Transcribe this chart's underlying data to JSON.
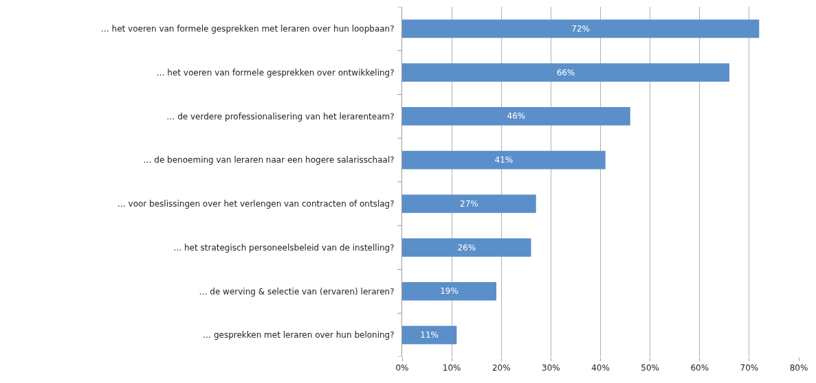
{
  "chart_data": {
    "type": "bar",
    "orientation": "horizontal",
    "categories": [
      "… het voeren van formele gesprekken met leraren over hun loopbaan?",
      "… het voeren van formele gesprekken over ontwikkeling?",
      "… de verdere professionalisering van het lerarenteam?",
      "… de benoeming van leraren naar een hogere salarisschaal?",
      "… voor beslissingen over het verlengen van contracten of ontslag?",
      "… het strategisch personeelsbeleid van de instelling?",
      "… de werving & selectie van (ervaren) leraren?",
      "… gesprekken met leraren over hun beloning?"
    ],
    "values": [
      72,
      66,
      46,
      41,
      27,
      26,
      19,
      11
    ],
    "value_labels": [
      "72%",
      "66%",
      "46%",
      "41%",
      "27%",
      "26%",
      "19%",
      "11%"
    ],
    "color": "#5b8fca",
    "xlim": [
      0,
      80
    ],
    "xticks": [
      {
        "value": 0,
        "label": "0%"
      },
      {
        "value": 10,
        "label": "10%"
      },
      {
        "value": 20,
        "label": "20%"
      },
      {
        "value": 30,
        "label": "30%"
      },
      {
        "value": 40,
        "label": "40%"
      },
      {
        "value": 50,
        "label": "50%"
      },
      {
        "value": 60,
        "label": "60%"
      },
      {
        "value": 70,
        "label": "70%"
      },
      {
        "value": 80,
        "label": "80%"
      }
    ],
    "grid": "x",
    "legend": false
  }
}
